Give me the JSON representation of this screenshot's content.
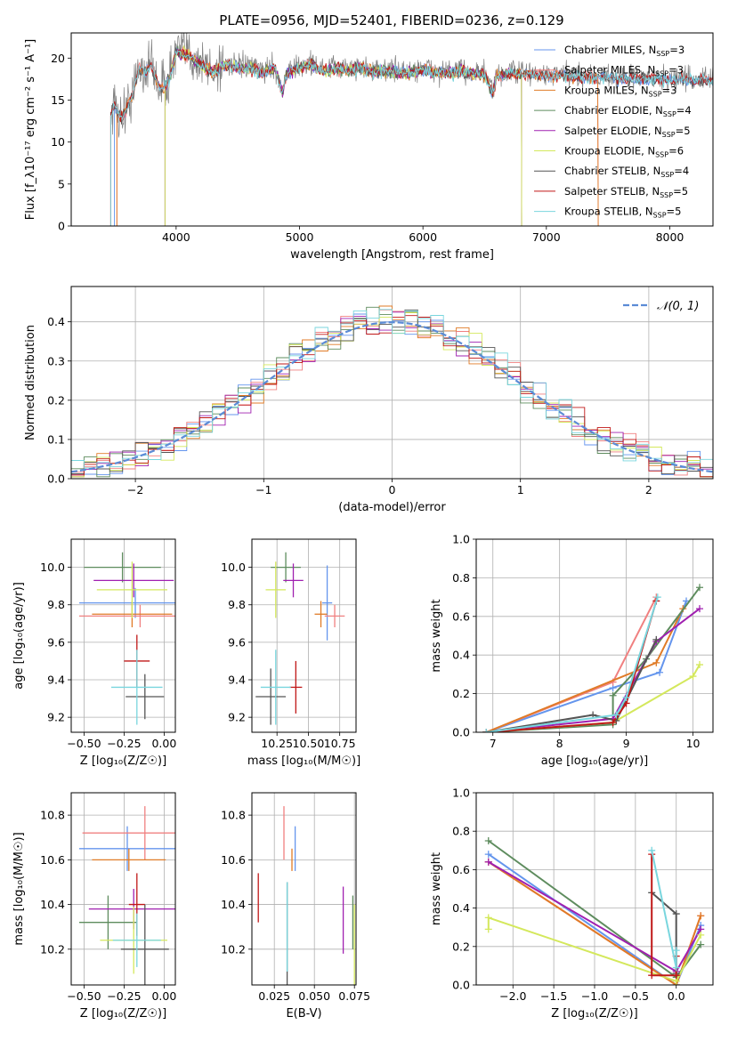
{
  "colors": {
    "Chabrier MILES": "#6495ed",
    "Salpeter MILES": "#f08080",
    "Kroupa MILES": "#e07b27",
    "Chabrier ELODIE": "#5e8c5e",
    "Salpeter ELODIE": "#a020b0",
    "Kroupa ELODIE": "#d4e85c",
    "Chabrier STELIB": "#555555",
    "Salpeter STELIB": "#c01818",
    "Kroupa STELIB": "#79d6de",
    "normal": "#5b8bd6"
  },
  "chart_data": [
    {
      "id": "spectrum",
      "type": "line",
      "title": "PLATE=0956, MJD=52401, FIBERID=0236, z=0.129",
      "xlabel": "wavelength [Angstrom, rest frame]",
      "ylabel": "Flux [f_λ10⁻¹⁷ erg cm⁻² s⁻¹ A⁻¹]",
      "xlim": [
        3150,
        8350
      ],
      "ylim": [
        0,
        23
      ],
      "xticks": [
        4000,
        5000,
        6000,
        7000,
        8000
      ],
      "yticks": [
        0,
        5,
        10,
        15,
        20
      ],
      "legend": "upper-right",
      "grid": false,
      "observed": {
        "x": [
          3470,
          3500,
          3550,
          3600,
          3650,
          3700,
          3750,
          3800,
          3850,
          3900,
          3950,
          4000,
          4100,
          4200,
          4300,
          4400,
          4500,
          4600,
          4700,
          4800,
          4861,
          4900,
          5000,
          5100,
          5200,
          5300,
          5400,
          5500,
          5600,
          5700,
          5800,
          5900,
          6000,
          6100,
          6200,
          6300,
          6400,
          6500,
          6563,
          6600,
          6700,
          6800,
          6900,
          7000,
          7100,
          7200,
          7300,
          7400,
          7500,
          7600,
          7700,
          7800,
          7900,
          8000,
          8100,
          8200,
          8300
        ],
        "y": [
          13.5,
          14.5,
          13.0,
          14.0,
          16.0,
          19.0,
          18.5,
          19.5,
          17.0,
          16.5,
          18.0,
          21.0,
          20.5,
          19.5,
          18.5,
          19.5,
          19.0,
          19.0,
          18.5,
          19.0,
          16.0,
          18.5,
          19.0,
          19.5,
          18.5,
          19.0,
          18.8,
          19.0,
          18.5,
          18.7,
          18.5,
          18.4,
          18.8,
          18.5,
          18.3,
          18.6,
          18.4,
          18.2,
          16.0,
          18.0,
          18.4,
          18.3,
          18.2,
          18.0,
          18.1,
          17.9,
          18.0,
          17.8,
          17.9,
          17.7,
          17.8,
          17.6,
          17.7,
          17.5,
          17.6,
          17.5,
          17.5
        ]
      },
      "series": [
        {
          "name": "Chabrier MILES, N_SSP=3",
          "start": 3500,
          "end": 8350
        },
        {
          "name": "Salpeter MILES, N_SSP=3",
          "start": 3520,
          "end": 7420
        },
        {
          "name": "Kroupa MILES, N_SSP=3",
          "start": 3520,
          "end": 7420
        },
        {
          "name": "Chabrier ELODIE, N_SSP=4",
          "start": 3910,
          "end": 6800
        },
        {
          "name": "Salpeter ELODIE, N_SSP=5",
          "start": 3910,
          "end": 6800
        },
        {
          "name": "Kroupa ELODIE, N_SSP=6",
          "start": 3910,
          "end": 6800
        },
        {
          "name": "Chabrier STELIB, N_SSP=4",
          "start": 3470,
          "end": 8350
        },
        {
          "name": "Salpeter STELIB, N_SSP=5",
          "start": 3470,
          "end": 8350
        },
        {
          "name": "Kroupa STELIB, N_SSP=5",
          "start": 3470,
          "end": 8350
        }
      ]
    },
    {
      "id": "residuals",
      "type": "line",
      "xlabel": "(data-model)/error",
      "ylabel": "Normed distribution",
      "xlim": [
        -2.5,
        2.5
      ],
      "ylim": [
        0,
        0.49
      ],
      "xticks": [
        -2,
        -1,
        0,
        1,
        2
      ],
      "yticks": [
        0.0,
        0.1,
        0.2,
        0.3,
        0.4
      ],
      "grid": true,
      "legend": "upper-right",
      "normal_label": "𝒩(0, 1)",
      "bin_width": 0.1
    },
    {
      "id": "age-vs-Z",
      "type": "scatter",
      "xlabel": "Z [log₁₀(Z/Z☉)]",
      "ylabel": "age  [log₁₀(age/yr)]",
      "xlim": [
        -0.58,
        0.07
      ],
      "ylim": [
        9.12,
        10.15
      ],
      "xticks": [
        -0.5,
        -0.25,
        0.0
      ],
      "yticks": [
        9.2,
        9.4,
        9.6,
        9.8,
        10.0
      ],
      "grid": true,
      "points": [
        {
          "model": "Chabrier MILES",
          "x": -0.18,
          "xerr": 0.35,
          "y": 9.81,
          "yerr": 0.08
        },
        {
          "model": "Salpeter MILES",
          "x": -0.15,
          "xerr": 0.38,
          "y": 9.74,
          "yerr": 0.06
        },
        {
          "model": "Kroupa MILES",
          "x": -0.2,
          "xerr": 0.25,
          "y": 9.75,
          "yerr": 0.07
        },
        {
          "model": "Chabrier ELODIE",
          "x": -0.26,
          "xerr": 0.24,
          "y": 10.0,
          "yerr": 0.08
        },
        {
          "model": "Salpeter ELODIE",
          "x": -0.19,
          "xerr": 0.25,
          "y": 9.93,
          "yerr": 0.09
        },
        {
          "model": "Kroupa ELODIE",
          "x": -0.2,
          "xerr": 0.22,
          "y": 9.88,
          "yerr": 0.15
        },
        {
          "model": "Chabrier STELIB",
          "x": -0.12,
          "xerr": 0.12,
          "y": 9.31,
          "yerr": 0.12
        },
        {
          "model": "Salpeter STELIB",
          "x": -0.17,
          "xerr": 0.08,
          "y": 9.5,
          "yerr": 0.14
        },
        {
          "model": "Kroupa STELIB",
          "x": -0.17,
          "xerr": 0.16,
          "y": 9.36,
          "yerr": 0.2
        }
      ]
    },
    {
      "id": "age-vs-mass",
      "type": "scatter",
      "xlabel": "mass [log₁₀(M/M☉)]",
      "ylabel": "",
      "xlim": [
        10.05,
        10.88
      ],
      "ylim": [
        9.12,
        10.15
      ],
      "xticks": [
        10.25,
        10.5,
        10.75
      ],
      "yticks": [
        9.2,
        9.4,
        9.6,
        9.8,
        10.0
      ],
      "grid": true,
      "points": [
        {
          "model": "Chabrier MILES",
          "x": 10.65,
          "xerr": 0.04,
          "y": 9.81,
          "yerr": 0.2
        },
        {
          "model": "Salpeter MILES",
          "x": 10.71,
          "xerr": 0.08,
          "y": 9.74,
          "yerr": 0.06
        },
        {
          "model": "Kroupa MILES",
          "x": 10.6,
          "xerr": 0.05,
          "y": 9.75,
          "yerr": 0.07
        },
        {
          "model": "Chabrier ELODIE",
          "x": 10.32,
          "xerr": 0.12,
          "y": 10.0,
          "yerr": 0.08
        },
        {
          "model": "Salpeter ELODIE",
          "x": 10.38,
          "xerr": 0.08,
          "y": 9.93,
          "yerr": 0.09
        },
        {
          "model": "Kroupa ELODIE",
          "x": 10.24,
          "xerr": 0.08,
          "y": 9.88,
          "yerr": 0.15
        },
        {
          "model": "Chabrier STELIB",
          "x": 10.2,
          "xerr": 0.12,
          "y": 9.31,
          "yerr": 0.15
        },
        {
          "model": "Salpeter STELIB",
          "x": 10.4,
          "xerr": 0.05,
          "y": 9.36,
          "yerr": 0.14
        },
        {
          "model": "Kroupa STELIB",
          "x": 10.24,
          "xerr": 0.12,
          "y": 9.36,
          "yerr": 0.2
        }
      ]
    },
    {
      "id": "weight-vs-age",
      "type": "line",
      "xlabel": "age  [log₁₀(age/yr)]",
      "ylabel": "mass weight",
      "xlim": [
        6.75,
        10.3
      ],
      "ylim": [
        0.0,
        1.0
      ],
      "xticks": [
        7,
        8,
        9,
        10
      ],
      "yticks": [
        0.0,
        0.2,
        0.4,
        0.6,
        0.8,
        1.0
      ],
      "grid": true,
      "series": [
        {
          "model": "Chabrier MILES",
          "x": [
            6.9,
            8.8,
            9.5,
            9.9
          ],
          "y": [
            0.0,
            0.23,
            0.31,
            0.68
          ]
        },
        {
          "model": "Salpeter MILES",
          "x": [
            6.9,
            8.8,
            9.45
          ],
          "y": [
            0.0,
            0.26,
            0.7
          ]
        },
        {
          "model": "Kroupa MILES",
          "x": [
            6.9,
            9.45,
            9.85
          ],
          "y": [
            0.0,
            0.36,
            0.64
          ]
        },
        {
          "model": "Chabrier ELODIE",
          "x": [
            6.9,
            8.8,
            8.8,
            9.3,
            10.1
          ],
          "y": [
            0.0,
            0.04,
            0.19,
            0.38,
            0.75
          ]
        },
        {
          "model": "Salpeter ELODIE",
          "x": [
            6.9,
            8.8,
            9.45,
            10.1
          ],
          "y": [
            0.0,
            0.07,
            0.47,
            0.64
          ]
        },
        {
          "model": "Kroupa ELODIE",
          "x": [
            6.9,
            8.8,
            10.0,
            10.1
          ],
          "y": [
            0.0,
            0.05,
            0.29,
            0.35
          ]
        },
        {
          "model": "Chabrier STELIB",
          "x": [
            6.9,
            8.5,
            8.85,
            9.45
          ],
          "y": [
            0.0,
            0.09,
            0.06,
            0.48
          ]
        },
        {
          "model": "Salpeter STELIB",
          "x": [
            6.9,
            8.8,
            9.0,
            9.45
          ],
          "y": [
            0.0,
            0.05,
            0.15,
            0.68
          ]
        },
        {
          "model": "Kroupa STELIB",
          "x": [
            6.9,
            8.85,
            9.0,
            9.47
          ],
          "y": [
            0.0,
            0.09,
            0.18,
            0.7
          ]
        }
      ]
    },
    {
      "id": "mass-vs-Z",
      "type": "scatter",
      "xlabel": "Z [log₁₀(Z/Z☉)]",
      "ylabel": "mass [log₁₀(M/M☉)]",
      "xlim": [
        -0.58,
        0.07
      ],
      "ylim": [
        10.04,
        10.9
      ],
      "xticks": [
        -0.5,
        -0.25,
        0.0
      ],
      "yticks": [
        10.2,
        10.4,
        10.6,
        10.8
      ],
      "grid": true,
      "points": [
        {
          "model": "Chabrier MILES",
          "x": -0.23,
          "xerr": 0.3,
          "y": 10.65,
          "yerr": 0.1
        },
        {
          "model": "Salpeter MILES",
          "x": -0.12,
          "xerr": 0.39,
          "y": 10.72,
          "yerr": 0.12
        },
        {
          "model": "Kroupa MILES",
          "x": -0.22,
          "xerr": 0.23,
          "y": 10.6,
          "yerr": 0.05
        },
        {
          "model": "Chabrier ELODIE",
          "x": -0.35,
          "xerr": 0.18,
          "y": 10.32,
          "yerr": 0.12
        },
        {
          "model": "Salpeter ELODIE",
          "x": -0.19,
          "xerr": 0.28,
          "y": 10.38,
          "yerr": 0.09
        },
        {
          "model": "Kroupa ELODIE",
          "x": -0.19,
          "xerr": 0.21,
          "y": 10.24,
          "yerr": 0.15
        },
        {
          "model": "Chabrier STELIB",
          "x": -0.12,
          "xerr": 0.15,
          "y": 10.2,
          "yerr": 0.2
        },
        {
          "model": "Salpeter STELIB",
          "x": -0.17,
          "xerr": 0.05,
          "y": 10.4,
          "yerr": 0.14
        },
        {
          "model": "Kroupa STELIB",
          "x": -0.17,
          "xerr": 0.15,
          "y": 10.24,
          "yerr": 0.12
        }
      ]
    },
    {
      "id": "mass-vs-ebv",
      "type": "scatter",
      "xlabel": "E(B-V)",
      "ylabel": "",
      "xlim": [
        0.011,
        0.076
      ],
      "ylim": [
        10.04,
        10.9
      ],
      "xticks": [
        0.025,
        0.05,
        0.075
      ],
      "yticks": [
        10.2,
        10.4,
        10.6,
        10.8
      ],
      "grid": true,
      "points": [
        {
          "model": "Chabrier MILES",
          "x": 0.038,
          "y": 10.65,
          "yerr": 0.1
        },
        {
          "model": "Salpeter MILES",
          "x": 0.031,
          "y": 10.72,
          "yerr": 0.12
        },
        {
          "model": "Kroupa MILES",
          "x": 0.036,
          "y": 10.6,
          "yerr": 0.05
        },
        {
          "model": "Chabrier ELODIE",
          "x": 0.074,
          "y": 10.32,
          "yerr": 0.12
        },
        {
          "model": "Salpeter ELODIE",
          "x": 0.068,
          "y": 10.33,
          "yerr": 0.15
        },
        {
          "model": "Kroupa ELODIE",
          "x": 0.075,
          "y": 10.22,
          "yerr": 0.18
        },
        {
          "model": "Chabrier STELIB",
          "x": 0.033,
          "y": 10.27,
          "yerr": 0.23
        },
        {
          "model": "Salpeter STELIB",
          "x": 0.015,
          "y": 10.43,
          "yerr": 0.11
        },
        {
          "model": "Kroupa STELIB",
          "x": 0.033,
          "y": 10.3,
          "yerr": 0.2
        }
      ]
    },
    {
      "id": "weight-vs-Z",
      "type": "line",
      "xlabel": "Z [log₁₀(Z/Z☉)]",
      "ylabel": "mass weight",
      "xlim": [
        -2.45,
        0.45
      ],
      "ylim": [
        0.0,
        1.0
      ],
      "xticks": [
        -2.0,
        -1.5,
        -1.0,
        -0.5,
        0.0
      ],
      "yticks": [
        0.0,
        0.2,
        0.4,
        0.6,
        0.8,
        1.0
      ],
      "grid": true,
      "series": [
        {
          "model": "Chabrier MILES",
          "x": [
            -2.3,
            0.0,
            0.3
          ],
          "y": [
            0.68,
            0.0,
            0.31
          ]
        },
        {
          "model": "Salpeter MILES",
          "x": [
            -2.3,
            0.0,
            0.3
          ],
          "y": [
            0.64,
            0.0,
            0.36
          ]
        },
        {
          "model": "Kroupa MILES",
          "x": [
            -2.3,
            0.0,
            0.3
          ],
          "y": [
            0.64,
            0.0,
            0.36
          ]
        },
        {
          "model": "Chabrier ELODIE",
          "x": [
            -2.3,
            0.0,
            0.3
          ],
          "y": [
            0.75,
            0.04,
            0.21
          ]
        },
        {
          "model": "Salpeter ELODIE",
          "x": [
            -2.3,
            0.0,
            0.3
          ],
          "y": [
            0.64,
            0.07,
            0.29
          ]
        },
        {
          "model": "Kroupa ELODIE",
          "x": [
            -2.3,
            -2.3,
            0.0,
            0.3
          ],
          "y": [
            0.29,
            0.35,
            0.02,
            0.26
          ]
        },
        {
          "model": "Chabrier STELIB",
          "x": [
            -0.3,
            0.0,
            0.0
          ],
          "y": [
            0.48,
            0.37,
            0.06
          ]
        },
        {
          "model": "Salpeter STELIB",
          "x": [
            -0.3,
            -0.3,
            0.0,
            0.0
          ],
          "y": [
            0.68,
            0.05,
            0.05,
            0.15
          ]
        },
        {
          "model": "Kroupa STELIB",
          "x": [
            -0.3,
            0.0,
            0.0
          ],
          "y": [
            0.7,
            0.09,
            0.18
          ]
        }
      ]
    }
  ]
}
